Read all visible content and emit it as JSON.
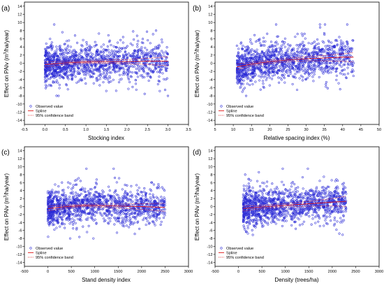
{
  "colors": {
    "observed": "#2b2bd6",
    "spline": "#e11b1b",
    "band": "#e11b1b"
  },
  "legend": [
    "Observed value",
    "Spline",
    "95% confidence band"
  ],
  "chart_data": [
    {
      "type": "scatter",
      "panel_label": "(a)",
      "xlabel": "Stocking index",
      "ylabel_parts": [
        "Effect on PAIv (m",
        "3",
        "/ha/year)"
      ],
      "xlim": [
        -0.5,
        3.5
      ],
      "ylim": [
        -15,
        15
      ],
      "xticks": [
        -0.5,
        0.0,
        0.5,
        1.0,
        1.5,
        2.0,
        2.5,
        3.0,
        3.5
      ],
      "xtick_labels": [
        "-0.5",
        "0.0",
        "0.5",
        "1.0",
        "1.5",
        "2.0",
        "2.5",
        "3.0",
        "3.5"
      ],
      "yticks": [
        -14,
        -12,
        -10,
        -8,
        -6,
        -4,
        -2,
        0,
        2,
        4,
        6,
        8,
        10,
        12,
        14
      ],
      "grid": true,
      "legend_position": "bottom-left",
      "observed_x_range": [
        0.0,
        3.0
      ],
      "observed_count": 1300,
      "spline": {
        "x": [
          0.0,
          0.5,
          1.0,
          1.5,
          2.0,
          2.5,
          3.0
        ],
        "y": [
          -0.3,
          0.1,
          0.3,
          0.4,
          0.4,
          0.5,
          0.5
        ]
      },
      "band_upper": {
        "x": [
          0.0,
          0.5,
          1.0,
          1.5,
          2.0,
          2.5,
          3.0
        ],
        "y": [
          0.3,
          0.5,
          0.6,
          0.8,
          0.9,
          1.2,
          1.6
        ]
      },
      "band_lower": {
        "x": [
          0.0,
          0.5,
          1.0,
          1.5,
          2.0,
          2.5,
          3.0
        ],
        "y": [
          -0.9,
          -0.3,
          0.0,
          0.0,
          -0.1,
          -0.3,
          -0.6
        ]
      }
    },
    {
      "type": "scatter",
      "panel_label": "(b)",
      "xlabel": "Relative spacing index (%)",
      "ylabel_parts": [
        "Effect on PAIv (m",
        "3",
        "/ha/year)"
      ],
      "xlim": [
        5,
        50
      ],
      "ylim": [
        -15,
        15
      ],
      "xticks": [
        5,
        10,
        15,
        20,
        25,
        30,
        35,
        40,
        45,
        50
      ],
      "xtick_labels": [
        "5",
        "10",
        "15",
        "20",
        "25",
        "30",
        "35",
        "40",
        "45",
        "50"
      ],
      "yticks": [
        -14,
        -12,
        -10,
        -8,
        -6,
        -4,
        -2,
        0,
        2,
        4,
        6,
        8,
        10,
        12,
        14
      ],
      "grid": true,
      "legend_position": "bottom-left",
      "observed_x_range": [
        11,
        43
      ],
      "observed_count": 1300,
      "spline": {
        "x": [
          11,
          15,
          20,
          25,
          30,
          35,
          40,
          43
        ],
        "y": [
          -0.9,
          -0.2,
          0.4,
          0.8,
          1.1,
          1.3,
          1.5,
          1.5
        ]
      },
      "band_upper": {
        "x": [
          11,
          15,
          20,
          25,
          30,
          35,
          40,
          43
        ],
        "y": [
          -0.2,
          0.2,
          0.8,
          1.2,
          1.6,
          1.9,
          2.3,
          2.6
        ]
      },
      "band_lower": {
        "x": [
          11,
          15,
          20,
          25,
          30,
          35,
          40,
          43
        ],
        "y": [
          -1.6,
          -0.6,
          0.0,
          0.4,
          0.6,
          0.6,
          0.5,
          0.3
        ]
      }
    },
    {
      "type": "scatter",
      "panel_label": "(c)",
      "xlabel": "Stand density index",
      "ylabel_parts": [
        "Effect on PAIv (m",
        "3",
        "/ha/year)"
      ],
      "xlim": [
        -500,
        3000
      ],
      "ylim": [
        -15,
        15
      ],
      "xticks": [
        -500,
        0,
        500,
        1000,
        1500,
        2000,
        2500,
        3000
      ],
      "xtick_labels": [
        "-500",
        "0",
        "500",
        "1000",
        "1500",
        "2000",
        "2500",
        "3000"
      ],
      "yticks": [
        -14,
        -12,
        -10,
        -8,
        -6,
        -4,
        -2,
        0,
        2,
        4,
        6,
        8,
        10,
        12,
        14
      ],
      "grid": true,
      "legend_position": "bottom-left",
      "observed_x_range": [
        0,
        2500
      ],
      "observed_count": 1300,
      "spline": {
        "x": [
          0,
          400,
          800,
          1200,
          1600,
          2000,
          2500
        ],
        "y": [
          -0.5,
          0.0,
          0.3,
          0.2,
          0.1,
          0.0,
          -0.2
        ]
      },
      "band_upper": {
        "x": [
          0,
          400,
          800,
          1200,
          1600,
          2000,
          2500
        ],
        "y": [
          0.1,
          0.4,
          0.6,
          0.6,
          0.6,
          0.7,
          0.8
        ]
      },
      "band_lower": {
        "x": [
          0,
          400,
          800,
          1200,
          1600,
          2000,
          2500
        ],
        "y": [
          -1.1,
          -0.4,
          0.0,
          -0.2,
          -0.4,
          -0.7,
          -1.2
        ]
      }
    },
    {
      "type": "scatter",
      "panel_label": "(d)",
      "xlabel": "Density (trees/ha)",
      "ylabel_parts": [
        "Effect on PAIv (m",
        "3",
        "/ha/year)"
      ],
      "xlim": [
        -500,
        3000
      ],
      "ylim": [
        -15,
        15
      ],
      "xticks": [
        -500,
        0,
        500,
        1000,
        1500,
        2000,
        2500,
        3000
      ],
      "xtick_labels": [
        "-500",
        "0",
        "500",
        "1000",
        "1500",
        "2000",
        "2500",
        "3000"
      ],
      "yticks": [
        -14,
        -12,
        -10,
        -8,
        -6,
        -4,
        -2,
        0,
        2,
        4,
        6,
        8,
        10,
        12,
        14
      ],
      "grid": true,
      "legend_position": "bottom-left",
      "observed_x_range": [
        100,
        2300
      ],
      "observed_count": 1300,
      "spline": {
        "x": [
          100,
          500,
          1000,
          1500,
          2000,
          2300
        ],
        "y": [
          -0.5,
          -0.1,
          0.3,
          0.7,
          1.1,
          1.3
        ]
      },
      "band_upper": {
        "x": [
          100,
          500,
          1000,
          1500,
          2000,
          2300
        ],
        "y": [
          0.1,
          0.3,
          0.7,
          1.3,
          2.0,
          2.6
        ]
      },
      "band_lower": {
        "x": [
          100,
          500,
          1000,
          1500,
          2000,
          2300
        ],
        "y": [
          -1.1,
          -0.5,
          -0.1,
          0.1,
          0.2,
          0.0
        ]
      }
    }
  ]
}
